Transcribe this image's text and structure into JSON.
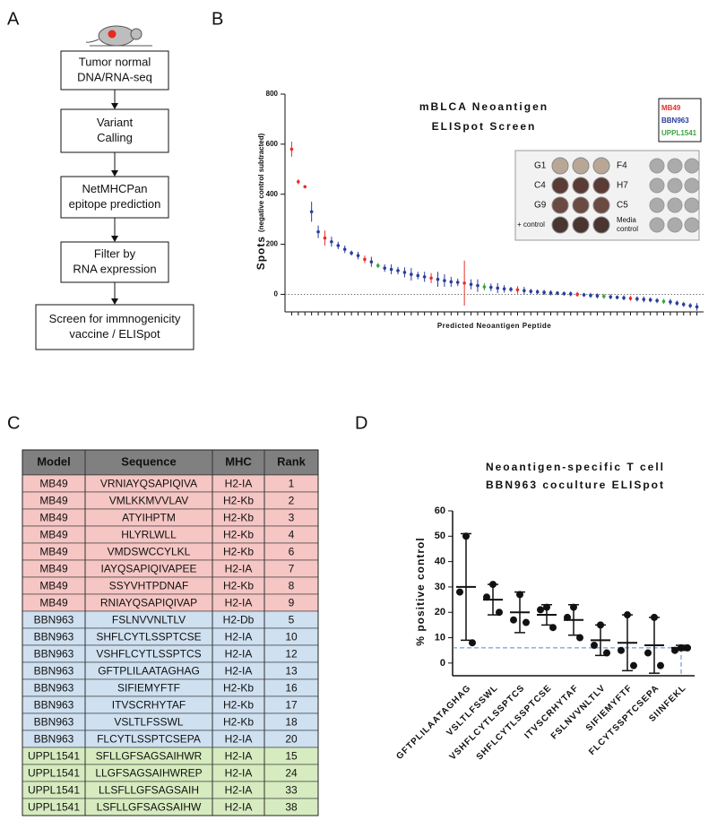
{
  "panel_labels": [
    "A",
    "B",
    "C",
    "D"
  ],
  "flowchart": {
    "steps": [
      [
        "Tumor normal",
        "DNA/RNA-seq"
      ],
      [
        "Variant",
        "Calling"
      ],
      [
        "NetMHCPan",
        "epitope prediction"
      ],
      [
        "Filter by",
        "RNA expression"
      ],
      [
        "Screen for immnogenicity",
        "vaccine / ELISpot"
      ]
    ]
  },
  "table": {
    "header": [
      "Model",
      "Sequence",
      "MHC",
      "Rank"
    ],
    "model_colors": {
      "MB49": "#f5c6c4",
      "BBN963": "#cfe0f0",
      "UPPL1541": "#d6ebbf"
    },
    "rows": [
      [
        "MB49",
        "VRNIAYQSAPIQIVA",
        "H2-IA",
        1
      ],
      [
        "MB49",
        "VMLKKMVVLAV",
        "H2-Kb",
        2
      ],
      [
        "MB49",
        "ATYIHPTM",
        "H2-Kb",
        3
      ],
      [
        "MB49",
        "HLYRLWLL",
        "H2-Kb",
        4
      ],
      [
        "MB49",
        "VMDSWCCYLKL",
        "H2-Kb",
        6
      ],
      [
        "MB49",
        "IAYQSAPIQIVAPEE",
        "H2-IA",
        7
      ],
      [
        "MB49",
        "SSYVHTPDNAF",
        "H2-Kb",
        8
      ],
      [
        "MB49",
        "RNIAYQSAPIQIVAP",
        "H2-IA",
        9
      ],
      [
        "BBN963",
        "FSLNVVNLTLV",
        "H2-Db",
        5
      ],
      [
        "BBN963",
        "SHFLCYTLSSPTCSE",
        "H2-IA",
        10
      ],
      [
        "BBN963",
        "VSHFLCYTLSSPTCS",
        "H2-IA",
        12
      ],
      [
        "BBN963",
        "GFTPLILAATAGHAG",
        "H2-IA",
        13
      ],
      [
        "BBN963",
        "SIFIEMYFTF",
        "H2-Kb",
        16
      ],
      [
        "BBN963",
        "ITVSCRHYTAF",
        "H2-Kb",
        17
      ],
      [
        "BBN963",
        "VSLTLFSSWL",
        "H2-Kb",
        18
      ],
      [
        "BBN963",
        "FLCYTLSSPTCSEPA",
        "H2-IA",
        20
      ],
      [
        "UPPL1541",
        "SFLLGFSAGSAIHWR",
        "H2-IA",
        15
      ],
      [
        "UPPL1541",
        "LLGFSAGSAIHWREP",
        "H2-IA",
        24
      ],
      [
        "UPPL1541",
        "LLSFLLGFSAGSAIH",
        "H2-IA",
        33
      ],
      [
        "UPPL1541",
        "LSFLLGFSAGSAIHW",
        "H2-IA",
        38
      ]
    ]
  },
  "chart_data": [
    {
      "type": "scatter",
      "title_lines": [
        "mBLCA Neoantigen",
        "ELISpot Screen"
      ],
      "ylabel": "Spots",
      "ylabel_note": "(negative control subtracted)",
      "xlabel": "Predicted Neoantigen Peptide",
      "xlim": [
        0,
        63
      ],
      "ylim": [
        -70,
        800
      ],
      "yticks": [
        0,
        200,
        400,
        600,
        800
      ],
      "zero_line": true,
      "series": [
        {
          "name": "MB49",
          "color": "#e8302a",
          "x": [
            1,
            2,
            3,
            6,
            12,
            22,
            27,
            35,
            44,
            52
          ],
          "values": [
            580,
            450,
            430,
            225,
            140,
            65,
            45,
            18,
            0,
            -16
          ],
          "errors": [
            30,
            10,
            5,
            30,
            15,
            20,
            90,
            15,
            10,
            10
          ]
        },
        {
          "name": "BBN963",
          "color": "#2a3c9c",
          "x": [
            4,
            5,
            7,
            8,
            9,
            10,
            11,
            13,
            15,
            16,
            17,
            18,
            19,
            20,
            21,
            23,
            24,
            25,
            26,
            28,
            29,
            31,
            32,
            33,
            34,
            36,
            37,
            38,
            39,
            40,
            41,
            42,
            43,
            45,
            46,
            47,
            49,
            50,
            51,
            53,
            54,
            55,
            56,
            58,
            59,
            60,
            61,
            62
          ],
          "values": [
            330,
            250,
            210,
            195,
            180,
            165,
            155,
            130,
            105,
            100,
            95,
            88,
            80,
            75,
            70,
            60,
            55,
            50,
            48,
            40,
            35,
            28,
            25,
            22,
            20,
            15,
            12,
            10,
            8,
            6,
            5,
            3,
            2,
            -2,
            -4,
            -6,
            -10,
            -12,
            -14,
            -18,
            -20,
            -22,
            -25,
            -30,
            -35,
            -40,
            -45,
            -50
          ],
          "errors": [
            40,
            25,
            20,
            15,
            15,
            10,
            15,
            20,
            15,
            20,
            15,
            20,
            25,
            15,
            20,
            30,
            25,
            20,
            15,
            20,
            25,
            15,
            20,
            15,
            10,
            15,
            10,
            10,
            10,
            10,
            8,
            8,
            10,
            8,
            10,
            10,
            10,
            8,
            10,
            10,
            12,
            10,
            10,
            12,
            10,
            10,
            10,
            15
          ]
        },
        {
          "name": "UPPL1541",
          "color": "#3aa540",
          "x": [
            14,
            30,
            48,
            57
          ],
          "values": [
            115,
            30,
            -8,
            -28
          ],
          "errors": [
            10,
            15,
            10,
            10
          ]
        }
      ],
      "inset": {
        "left_labels": [
          [
            "G1"
          ],
          [
            "C4"
          ],
          [
            "G9"
          ],
          [
            "+ control"
          ]
        ],
        "right_labels": [
          [
            "F4"
          ],
          [
            "H7"
          ],
          [
            "C5"
          ],
          [
            "Media",
            "control"
          ]
        ]
      }
    },
    {
      "type": "dotplot",
      "title_lines": [
        "Neoantigen-specific T cell",
        "BBN963 coculture ELISpot"
      ],
      "ylabel": "% positive control",
      "ylim": [
        -5,
        60
      ],
      "yticks": [
        0,
        10,
        20,
        30,
        40,
        50,
        60
      ],
      "categories": [
        "GFTPLILAATAGHAG",
        "VSLTLFSSWL",
        "VSHFLCYTLSSPTCS",
        "SHFLCYTLSSPTCSE",
        "ITVSCRHYTAF",
        "FSLNVVNLTLV",
        "SIFIEMYFTF",
        "FLCYTSSPTCSEPA",
        "SIINFEKL"
      ],
      "points": [
        [
          50,
          28,
          8
        ],
        [
          31,
          26,
          20
        ],
        [
          27,
          17,
          16
        ],
        [
          22,
          21,
          14
        ],
        [
          22,
          18,
          10
        ],
        [
          15,
          7,
          4
        ],
        [
          19,
          5,
          -1
        ],
        [
          18,
          4,
          -1
        ],
        [
          6,
          5,
          6
        ]
      ],
      "means": [
        30,
        25,
        20,
        19,
        17,
        9,
        8,
        7,
        6
      ],
      "sd": [
        21,
        6,
        8,
        4,
        6,
        6,
        11,
        11,
        1
      ],
      "baseline": 6,
      "color": "#111111",
      "baseline_color": "#4a86d8"
    }
  ]
}
